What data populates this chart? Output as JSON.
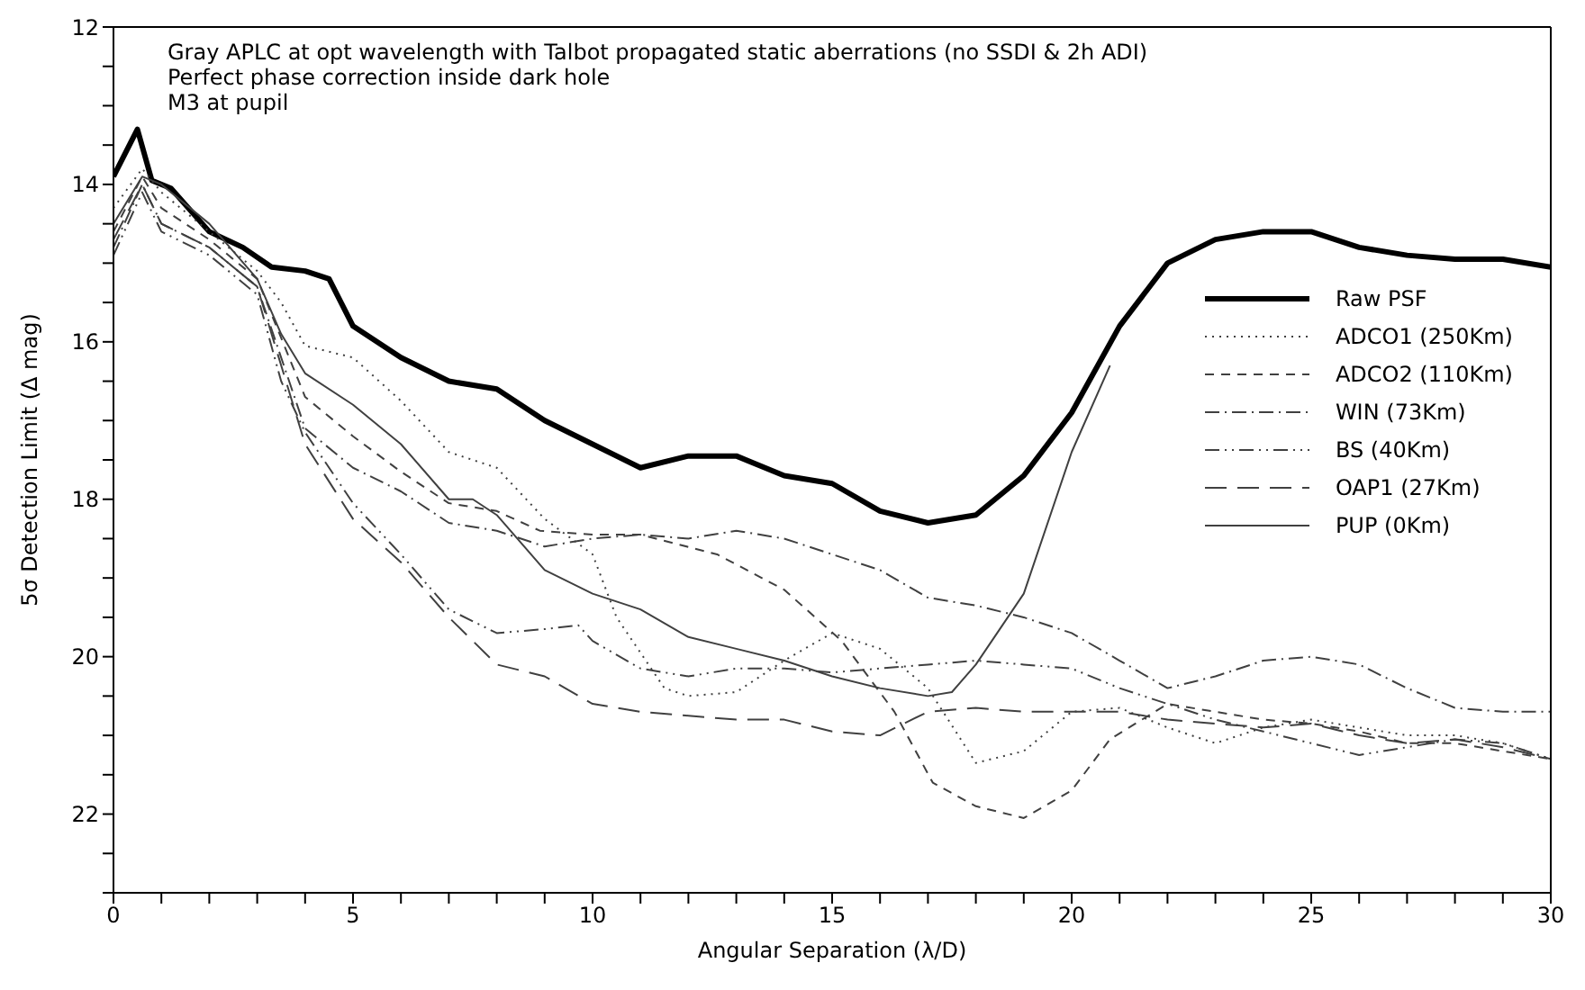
{
  "chart_data": {
    "type": "line",
    "title": "Gray APLC at opt wavelength with Talbot propagated static aberrations (no SSDI & 2h ADI)",
    "subtitle": "Perfect phase correction inside dark hole",
    "annotations": [
      "M3 at pupil"
    ],
    "xlabel": "Angular Separation (λ/D)",
    "ylabel": "5σ Detection Limit (Δ mag)",
    "xlim": [
      0,
      30
    ],
    "ylim": [
      23,
      12
    ],
    "xticks": [
      0,
      {
        "value": 1,
        "label": null
      },
      {
        "value": 2,
        "label": null
      },
      {
        "value": 3,
        "label": null
      },
      {
        "value": 4,
        "label": null
      },
      5,
      {
        "value": 6,
        "label": null
      },
      {
        "value": 7,
        "label": null
      },
      {
        "value": 8,
        "label": null
      },
      {
        "value": 9,
        "label": null
      },
      10,
      {
        "value": 11,
        "label": null
      },
      {
        "value": 12,
        "label": null
      },
      {
        "value": 13,
        "label": null
      },
      {
        "value": 14,
        "label": null
      },
      15,
      {
        "value": 16,
        "label": null
      },
      {
        "value": 17,
        "label": null
      },
      {
        "value": 18,
        "label": null
      },
      {
        "value": 19,
        "label": null
      },
      20,
      {
        "value": 21,
        "label": null
      },
      {
        "value": 22,
        "label": null
      },
      {
        "value": 23,
        "label": null
      },
      {
        "value": 24,
        "label": null
      },
      25,
      {
        "value": 26,
        "label": null
      },
      {
        "value": 27,
        "label": null
      },
      {
        "value": 28,
        "label": null
      },
      {
        "value": 29,
        "label": null
      },
      30
    ],
    "yticks": [
      12,
      {
        "value": 12.5,
        "label": null
      },
      {
        "value": 13,
        "label": null
      },
      {
        "value": 13.5,
        "label": null
      },
      14,
      {
        "value": 14.5,
        "label": null
      },
      {
        "value": 15,
        "label": null
      },
      {
        "value": 15.5,
        "label": null
      },
      16,
      {
        "value": 16.5,
        "label": null
      },
      {
        "value": 17,
        "label": null
      },
      {
        "value": 17.5,
        "label": null
      },
      18,
      {
        "value": 18.5,
        "label": null
      },
      {
        "value": 19,
        "label": null
      },
      {
        "value": 19.5,
        "label": null
      },
      20,
      {
        "value": 20.5,
        "label": null
      },
      {
        "value": 21,
        "label": null
      },
      {
        "value": 21.5,
        "label": null
      },
      22,
      {
        "value": 22.5,
        "label": null
      },
      {
        "value": 23,
        "label": null
      }
    ],
    "legend": "right",
    "marker": "none",
    "series": [
      {
        "name": "Raw PSF",
        "color": "#000000",
        "line_style": "solid",
        "x": [
          0,
          0.5,
          0.8,
          1.2,
          2,
          2.7,
          3.3,
          4,
          4.5,
          5,
          6,
          7,
          8,
          9,
          10,
          11,
          12,
          13,
          14,
          15,
          16,
          17,
          18,
          19,
          20,
          21,
          22,
          23,
          24,
          25,
          26,
          27,
          28,
          29,
          30
        ],
        "values": [
          13.9,
          13.3,
          13.95,
          14.05,
          14.6,
          14.8,
          15.05,
          15.1,
          15.2,
          15.8,
          16.2,
          16.5,
          16.6,
          17.0,
          17.3,
          17.6,
          17.45,
          17.45,
          17.7,
          17.8,
          18.15,
          18.3,
          18.2,
          17.7,
          16.9,
          15.8,
          15.0,
          14.7,
          14.6,
          14.6,
          14.8,
          14.9,
          14.95,
          14.95,
          15.05
        ]
      },
      {
        "name": "ADCO1 (250Km)",
        "color": "#404040",
        "line_style": "dotted",
        "x": [
          0,
          0.6,
          1,
          2,
          3,
          3.5,
          4,
          5,
          6,
          7,
          8,
          9,
          10,
          10.5,
          11.5,
          12,
          13,
          14,
          15,
          16,
          17,
          18,
          19,
          20,
          21,
          22,
          23,
          24,
          25,
          26,
          27,
          28,
          29,
          30
        ],
        "values": [
          14.3,
          13.8,
          14.1,
          14.6,
          15.1,
          15.5,
          16.05,
          16.2,
          16.75,
          17.4,
          17.6,
          18.25,
          18.7,
          19.5,
          20.4,
          20.5,
          20.45,
          20.05,
          19.7,
          19.9,
          20.4,
          21.35,
          21.2,
          20.7,
          20.65,
          20.9,
          21.1,
          20.9,
          20.8,
          20.9,
          21.0,
          21.0,
          21.1,
          21.3
        ]
      },
      {
        "name": "ADCO2 (110Km)",
        "color": "#404040",
        "line_style": "dashed",
        "x": [
          0,
          0.6,
          1,
          2,
          3,
          4,
          5,
          6,
          7,
          8,
          8.9,
          10,
          11,
          12.6,
          14,
          15.2,
          16.3,
          17.1,
          18,
          19,
          20,
          20.8,
          22,
          23,
          24,
          25,
          26,
          27,
          28,
          29,
          30
        ],
        "values": [
          14.6,
          13.9,
          14.3,
          14.7,
          15.2,
          16.7,
          17.2,
          17.65,
          18.05,
          18.15,
          18.4,
          18.45,
          18.45,
          18.7,
          19.15,
          19.8,
          20.7,
          21.6,
          21.9,
          22.05,
          21.7,
          21.05,
          20.6,
          20.7,
          20.8,
          20.85,
          20.95,
          21.1,
          21.1,
          21.2,
          21.3
        ]
      },
      {
        "name": "WIN (73Km)",
        "color": "#404040",
        "line_style": "dashdot",
        "x": [
          0,
          0.6,
          1,
          2,
          3,
          4,
          5,
          6,
          7,
          8,
          9,
          10,
          11,
          12,
          13,
          14,
          15,
          16,
          17,
          18,
          19,
          20,
          21,
          22,
          23,
          24,
          25,
          26,
          27,
          28,
          29,
          30
        ],
        "values": [
          14.8,
          14.0,
          14.5,
          14.8,
          15.3,
          17.1,
          17.6,
          17.9,
          18.3,
          18.4,
          18.6,
          18.5,
          18.45,
          18.5,
          18.4,
          18.5,
          18.7,
          18.9,
          19.25,
          19.35,
          19.5,
          19.7,
          20.05,
          20.4,
          20.25,
          20.05,
          20.0,
          20.1,
          20.4,
          20.65,
          20.7,
          20.7
        ]
      },
      {
        "name": "BS (40Km)",
        "color": "#404040",
        "line_style": "dashdotdot",
        "x": [
          0,
          0.6,
          1,
          2,
          3,
          3.5,
          4,
          5,
          6,
          7,
          8,
          9,
          9.7,
          10,
          11,
          12,
          13,
          14,
          15,
          16,
          17,
          18,
          19,
          20,
          21,
          22,
          23,
          24,
          25,
          26,
          27,
          28,
          29,
          30
        ],
        "values": [
          14.9,
          14.1,
          14.6,
          14.9,
          15.4,
          16.5,
          17.15,
          18.05,
          18.7,
          19.4,
          19.7,
          19.65,
          19.6,
          19.8,
          20.15,
          20.25,
          20.15,
          20.15,
          20.2,
          20.15,
          20.1,
          20.05,
          20.1,
          20.15,
          20.4,
          20.6,
          20.8,
          20.95,
          21.1,
          21.25,
          21.15,
          21.05,
          21.1,
          21.3
        ]
      },
      {
        "name": "OAP1 (27Km)",
        "color": "#404040",
        "line_style": "longdash",
        "x": [
          0,
          0.6,
          1,
          2,
          3,
          4,
          5,
          6,
          7,
          8,
          9,
          10,
          11,
          12,
          13,
          14,
          15,
          16,
          17,
          18,
          19,
          20,
          21,
          22,
          23,
          24,
          25,
          26,
          27,
          28,
          29,
          30
        ],
        "values": [
          14.7,
          14.0,
          14.5,
          14.8,
          15.3,
          17.3,
          18.25,
          18.8,
          19.5,
          20.1,
          20.25,
          20.6,
          20.7,
          20.75,
          20.8,
          20.8,
          20.95,
          21.0,
          20.7,
          20.65,
          20.7,
          20.7,
          20.7,
          20.8,
          20.85,
          20.9,
          20.85,
          21.0,
          21.1,
          21.05,
          21.15,
          21.3
        ]
      },
      {
        "name": "PUP (0Km)",
        "color": "#404040",
        "line_style": "solid",
        "x": [
          0,
          0.6,
          1,
          2,
          3,
          3.5,
          4,
          5,
          6,
          7,
          7.5,
          8,
          9,
          10,
          11,
          12,
          13,
          14,
          15,
          16,
          17,
          17.5,
          18,
          19,
          20,
          20.8
        ],
        "values": [
          14.5,
          13.9,
          14.0,
          14.5,
          15.2,
          15.9,
          16.4,
          16.8,
          17.3,
          18.0,
          18.0,
          18.2,
          18.9,
          19.2,
          19.4,
          19.75,
          19.9,
          20.05,
          20.25,
          20.4,
          20.5,
          20.45,
          20.1,
          19.2,
          17.4,
          16.3
        ]
      }
    ]
  }
}
